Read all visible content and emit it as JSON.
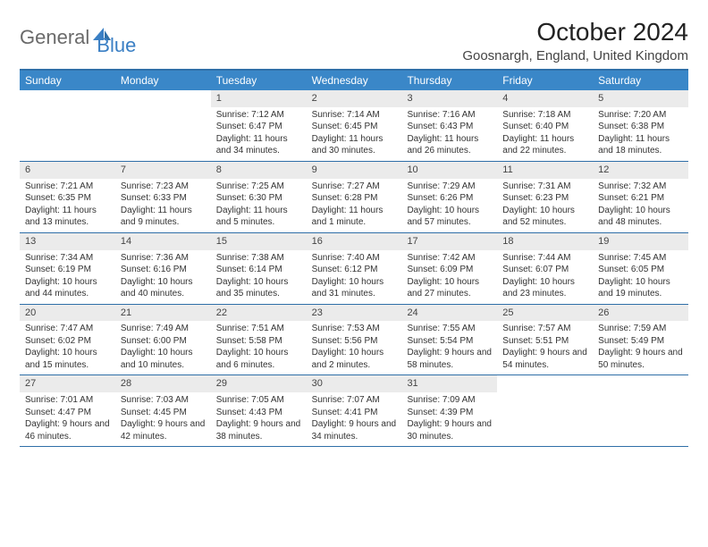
{
  "brand": {
    "part1": "General",
    "part2": "Blue"
  },
  "title": "October 2024",
  "location": "Goosnargh, England, United Kingdom",
  "colors": {
    "header_bar": "#3a87c8",
    "border": "#2f6fa8",
    "day_number_bg": "#ebebeb",
    "logo_gray": "#6a6a6a",
    "logo_blue": "#3a7fc4"
  },
  "weekdays": [
    "Sunday",
    "Monday",
    "Tuesday",
    "Wednesday",
    "Thursday",
    "Friday",
    "Saturday"
  ],
  "weeks": [
    [
      null,
      null,
      {
        "n": "1",
        "sunrise": "7:12 AM",
        "sunset": "6:47 PM",
        "daylight": "11 hours and 34 minutes."
      },
      {
        "n": "2",
        "sunrise": "7:14 AM",
        "sunset": "6:45 PM",
        "daylight": "11 hours and 30 minutes."
      },
      {
        "n": "3",
        "sunrise": "7:16 AM",
        "sunset": "6:43 PM",
        "daylight": "11 hours and 26 minutes."
      },
      {
        "n": "4",
        "sunrise": "7:18 AM",
        "sunset": "6:40 PM",
        "daylight": "11 hours and 22 minutes."
      },
      {
        "n": "5",
        "sunrise": "7:20 AM",
        "sunset": "6:38 PM",
        "daylight": "11 hours and 18 minutes."
      }
    ],
    [
      {
        "n": "6",
        "sunrise": "7:21 AM",
        "sunset": "6:35 PM",
        "daylight": "11 hours and 13 minutes."
      },
      {
        "n": "7",
        "sunrise": "7:23 AM",
        "sunset": "6:33 PM",
        "daylight": "11 hours and 9 minutes."
      },
      {
        "n": "8",
        "sunrise": "7:25 AM",
        "sunset": "6:30 PM",
        "daylight": "11 hours and 5 minutes."
      },
      {
        "n": "9",
        "sunrise": "7:27 AM",
        "sunset": "6:28 PM",
        "daylight": "11 hours and 1 minute."
      },
      {
        "n": "10",
        "sunrise": "7:29 AM",
        "sunset": "6:26 PM",
        "daylight": "10 hours and 57 minutes."
      },
      {
        "n": "11",
        "sunrise": "7:31 AM",
        "sunset": "6:23 PM",
        "daylight": "10 hours and 52 minutes."
      },
      {
        "n": "12",
        "sunrise": "7:32 AM",
        "sunset": "6:21 PM",
        "daylight": "10 hours and 48 minutes."
      }
    ],
    [
      {
        "n": "13",
        "sunrise": "7:34 AM",
        "sunset": "6:19 PM",
        "daylight": "10 hours and 44 minutes."
      },
      {
        "n": "14",
        "sunrise": "7:36 AM",
        "sunset": "6:16 PM",
        "daylight": "10 hours and 40 minutes."
      },
      {
        "n": "15",
        "sunrise": "7:38 AM",
        "sunset": "6:14 PM",
        "daylight": "10 hours and 35 minutes."
      },
      {
        "n": "16",
        "sunrise": "7:40 AM",
        "sunset": "6:12 PM",
        "daylight": "10 hours and 31 minutes."
      },
      {
        "n": "17",
        "sunrise": "7:42 AM",
        "sunset": "6:09 PM",
        "daylight": "10 hours and 27 minutes."
      },
      {
        "n": "18",
        "sunrise": "7:44 AM",
        "sunset": "6:07 PM",
        "daylight": "10 hours and 23 minutes."
      },
      {
        "n": "19",
        "sunrise": "7:45 AM",
        "sunset": "6:05 PM",
        "daylight": "10 hours and 19 minutes."
      }
    ],
    [
      {
        "n": "20",
        "sunrise": "7:47 AM",
        "sunset": "6:02 PM",
        "daylight": "10 hours and 15 minutes."
      },
      {
        "n": "21",
        "sunrise": "7:49 AM",
        "sunset": "6:00 PM",
        "daylight": "10 hours and 10 minutes."
      },
      {
        "n": "22",
        "sunrise": "7:51 AM",
        "sunset": "5:58 PM",
        "daylight": "10 hours and 6 minutes."
      },
      {
        "n": "23",
        "sunrise": "7:53 AM",
        "sunset": "5:56 PM",
        "daylight": "10 hours and 2 minutes."
      },
      {
        "n": "24",
        "sunrise": "7:55 AM",
        "sunset": "5:54 PM",
        "daylight": "9 hours and 58 minutes."
      },
      {
        "n": "25",
        "sunrise": "7:57 AM",
        "sunset": "5:51 PM",
        "daylight": "9 hours and 54 minutes."
      },
      {
        "n": "26",
        "sunrise": "7:59 AM",
        "sunset": "5:49 PM",
        "daylight": "9 hours and 50 minutes."
      }
    ],
    [
      {
        "n": "27",
        "sunrise": "7:01 AM",
        "sunset": "4:47 PM",
        "daylight": "9 hours and 46 minutes."
      },
      {
        "n": "28",
        "sunrise": "7:03 AM",
        "sunset": "4:45 PM",
        "daylight": "9 hours and 42 minutes."
      },
      {
        "n": "29",
        "sunrise": "7:05 AM",
        "sunset": "4:43 PM",
        "daylight": "9 hours and 38 minutes."
      },
      {
        "n": "30",
        "sunrise": "7:07 AM",
        "sunset": "4:41 PM",
        "daylight": "9 hours and 34 minutes."
      },
      {
        "n": "31",
        "sunrise": "7:09 AM",
        "sunset": "4:39 PM",
        "daylight": "9 hours and 30 minutes."
      },
      null,
      null
    ]
  ],
  "labels": {
    "sunrise": "Sunrise:",
    "sunset": "Sunset:",
    "daylight": "Daylight:"
  }
}
